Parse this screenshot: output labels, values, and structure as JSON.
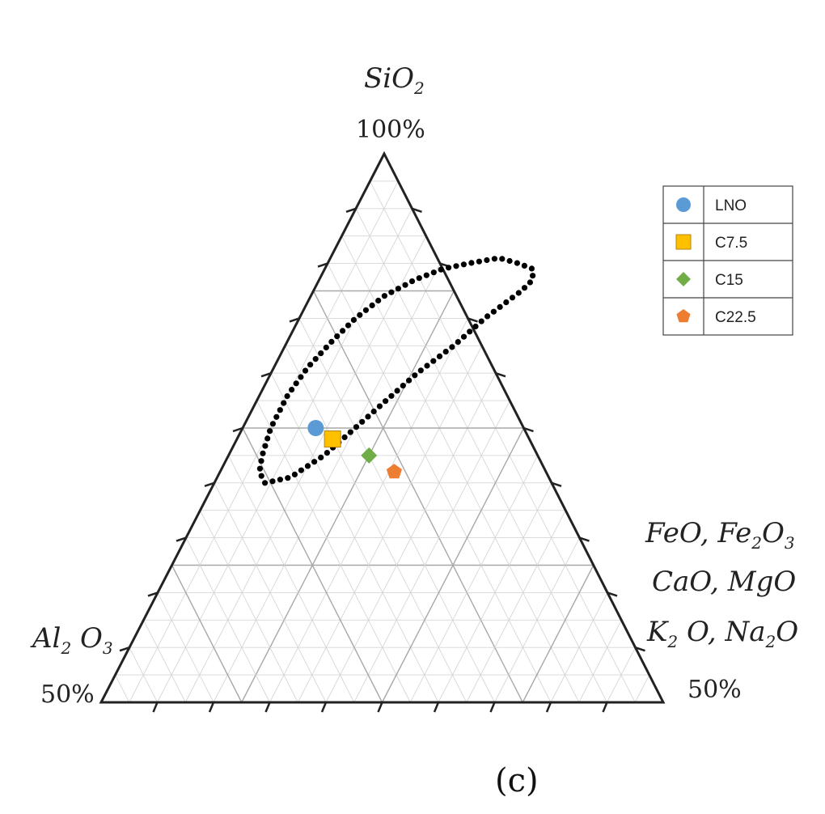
{
  "chart_data": {
    "type": "scatter",
    "subtype": "ternary",
    "panel_label": "(c)",
    "axes": {
      "top": {
        "label_main": "SiO",
        "label_sub": "2",
        "corner_value": "100%"
      },
      "left": {
        "label_main_1": "Al",
        "label_sub_1": "2",
        "label_main_2": " O",
        "label_sub_2": "3",
        "corner_value": "50%"
      },
      "right": {
        "lines": [
          [
            {
              "t": "FeO, Fe"
            },
            {
              "t": "2",
              "sub": true
            },
            {
              "t": "O"
            },
            {
              "t": "3",
              "sub": true
            }
          ],
          [
            {
              "t": "CaO, MgO"
            }
          ],
          [
            {
              "t": "K"
            },
            {
              "t": "2",
              "sub": true
            },
            {
              "t": " O, Na"
            },
            {
              "t": "2",
              "sub": true
            },
            {
              "t": "O"
            }
          ]
        ],
        "corner_value": "50%"
      }
    },
    "region_boundary": [
      [
        0.09,
        0.4
      ],
      [
        0.07,
        0.42
      ],
      [
        0.06,
        0.45
      ],
      [
        0.05,
        0.5
      ],
      [
        0.05,
        0.56
      ],
      [
        0.06,
        0.61
      ],
      [
        0.08,
        0.66
      ],
      [
        0.1,
        0.7
      ],
      [
        0.13,
        0.74
      ],
      [
        0.17,
        0.77
      ],
      [
        0.21,
        0.79
      ],
      [
        0.25,
        0.8
      ],
      [
        0.3,
        0.81
      ],
      [
        0.34,
        0.8
      ],
      [
        0.37,
        0.79
      ],
      [
        0.38,
        0.77
      ],
      [
        0.37,
        0.75
      ],
      [
        0.33,
        0.7
      ],
      [
        0.3,
        0.65
      ],
      [
        0.26,
        0.6
      ],
      [
        0.23,
        0.55
      ],
      [
        0.2,
        0.5
      ],
      [
        0.17,
        0.45
      ],
      [
        0.13,
        0.41
      ],
      [
        0.09,
        0.4
      ]
    ],
    "series": [
      {
        "name": "LNO",
        "marker": "circle",
        "color": "#5b9bd5",
        "points": [
          [
            0.13,
            0.5
          ]
        ]
      },
      {
        "name": "C7.5",
        "marker": "square",
        "color": "#ffc000",
        "points": [
          [
            0.17,
            0.48
          ]
        ]
      },
      {
        "name": "C15",
        "marker": "diamond",
        "color": "#70ad47",
        "points": [
          [
            0.25,
            0.45
          ]
        ]
      },
      {
        "name": "C22.5",
        "marker": "pentagon",
        "color": "#ed7d31",
        "points": [
          [
            0.31,
            0.42
          ]
        ]
      }
    ],
    "legend": {
      "position": "top-right"
    },
    "grid": true,
    "grid_divisions": 20
  }
}
